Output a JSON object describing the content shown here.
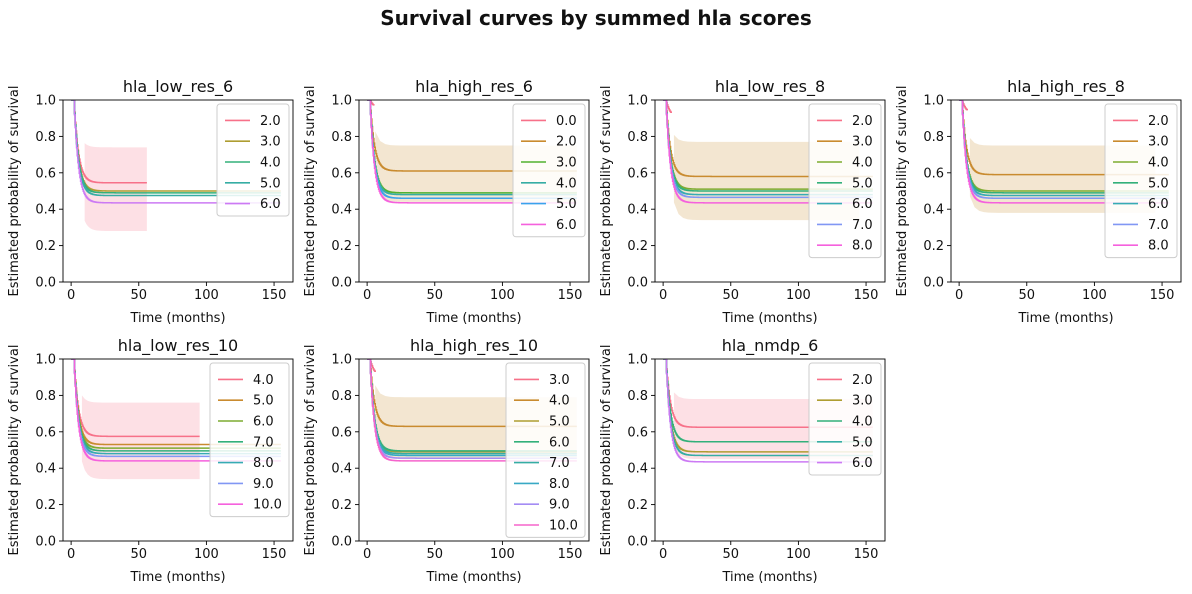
{
  "title": "Survival curves by summed hla scores",
  "chart_data": [
    {
      "type": "line",
      "title": "hla_low_res_6",
      "xlabel": "Time (months)",
      "ylabel": "Estimated probability of survival",
      "xlim": [
        -6,
        164
      ],
      "ylim": [
        0,
        1.0
      ],
      "xticks": [
        0,
        50,
        100,
        150
      ],
      "yticks": [
        0.0,
        0.2,
        0.4,
        0.6,
        0.8,
        1.0
      ],
      "legend": "top-right",
      "series": [
        {
          "name": "2.0",
          "color": "#f77189",
          "x_end": 56,
          "final": 0.545,
          "ci": [
            0.31,
            0.72
          ],
          "ci_x": [
            10,
            56
          ]
        },
        {
          "name": "3.0",
          "color": "#ae9d31",
          "x_end": 155,
          "final": 0.5
        },
        {
          "name": "4.0",
          "color": "#33b07a",
          "x_end": 155,
          "final": 0.49
        },
        {
          "name": "5.0",
          "color": "#36ada4",
          "x_end": 155,
          "final": 0.475
        },
        {
          "name": "6.0",
          "color": "#cc7af4",
          "x_end": 155,
          "final": 0.435
        }
      ]
    },
    {
      "type": "line",
      "title": "hla_high_res_6",
      "xlabel": "Time (months)",
      "ylabel": "Estimated probability of survival",
      "xlim": [
        -6,
        164
      ],
      "ylim": [
        0,
        1.0
      ],
      "xticks": [
        0,
        50,
        100,
        150
      ],
      "yticks": [
        0.0,
        0.2,
        0.4,
        0.6,
        0.8,
        1.0
      ],
      "legend": "top-right",
      "series": [
        {
          "name": "0.0",
          "color": "#f77189",
          "x_end": 5,
          "final": 0.95
        },
        {
          "name": "2.0",
          "color": "#c98b2f",
          "x_end": 155,
          "final": 0.61,
          "ci": [
            0.47,
            0.73
          ],
          "ci_x": [
            6,
            155
          ]
        },
        {
          "name": "3.0",
          "color": "#50b131",
          "x_end": 155,
          "final": 0.49
        },
        {
          "name": "4.0",
          "color": "#36ada4",
          "x_end": 155,
          "final": 0.48
        },
        {
          "name": "5.0",
          "color": "#3ba3ec",
          "x_end": 155,
          "final": 0.46
        },
        {
          "name": "6.0",
          "color": "#f561dd",
          "x_end": 155,
          "final": 0.435
        }
      ]
    },
    {
      "type": "line",
      "title": "hla_low_res_8",
      "xlabel": "Time (months)",
      "ylabel": "Estimated probability of survival",
      "xlim": [
        -6,
        164
      ],
      "ylim": [
        0,
        1.0
      ],
      "xticks": [
        0,
        50,
        100,
        150
      ],
      "yticks": [
        0.0,
        0.2,
        0.4,
        0.6,
        0.8,
        1.0
      ],
      "legend": "top-right",
      "series": [
        {
          "name": "2.0",
          "color": "#f77189",
          "x_end": 6,
          "final": 0.9
        },
        {
          "name": "3.0",
          "color": "#c98b2f",
          "x_end": 155,
          "final": 0.58,
          "ci": [
            0.37,
            0.75
          ],
          "ci_x": [
            8,
            145
          ]
        },
        {
          "name": "4.0",
          "color": "#7dab31",
          "x_end": 155,
          "final": 0.51
        },
        {
          "name": "5.0",
          "color": "#33b07a",
          "x_end": 155,
          "final": 0.5
        },
        {
          "name": "6.0",
          "color": "#37abb4",
          "x_end": 155,
          "final": 0.48
        },
        {
          "name": "7.0",
          "color": "#8197f4",
          "x_end": 155,
          "final": 0.465
        },
        {
          "name": "8.0",
          "color": "#f561dd",
          "x_end": 155,
          "final": 0.435
        }
      ]
    },
    {
      "type": "line",
      "title": "hla_high_res_8",
      "xlabel": "Time (months)",
      "ylabel": "Estimated probability of survival",
      "xlim": [
        -6,
        164
      ],
      "ylim": [
        0,
        1.0
      ],
      "xticks": [
        0,
        50,
        100,
        150
      ],
      "yticks": [
        0.0,
        0.2,
        0.4,
        0.6,
        0.8,
        1.0
      ],
      "legend": "top-right",
      "series": [
        {
          "name": "2.0",
          "color": "#f77189",
          "x_end": 6,
          "final": 0.92
        },
        {
          "name": "3.0",
          "color": "#c98b2f",
          "x_end": 155,
          "final": 0.59,
          "ci": [
            0.41,
            0.73
          ],
          "ci_x": [
            8,
            145
          ]
        },
        {
          "name": "4.0",
          "color": "#7dab31",
          "x_end": 155,
          "final": 0.5
        },
        {
          "name": "5.0",
          "color": "#33b07a",
          "x_end": 155,
          "final": 0.49
        },
        {
          "name": "6.0",
          "color": "#37abb4",
          "x_end": 155,
          "final": 0.475
        },
        {
          "name": "7.0",
          "color": "#8197f4",
          "x_end": 155,
          "final": 0.46
        },
        {
          "name": "8.0",
          "color": "#f561dd",
          "x_end": 155,
          "final": 0.435
        }
      ]
    },
    {
      "type": "line",
      "title": "hla_low_res_10",
      "xlabel": "Time (months)",
      "ylabel": "Estimated probability of survival",
      "xlim": [
        -6,
        164
      ],
      "ylim": [
        0,
        1.0
      ],
      "xticks": [
        0,
        50,
        100,
        150
      ],
      "yticks": [
        0.0,
        0.2,
        0.4,
        0.6,
        0.8,
        1.0
      ],
      "legend": "top-right",
      "series": [
        {
          "name": "4.0",
          "color": "#f77189",
          "x_end": 95,
          "final": 0.575,
          "ci": [
            0.37,
            0.74
          ],
          "ci_x": [
            8,
            95
          ]
        },
        {
          "name": "5.0",
          "color": "#c98b2f",
          "x_end": 155,
          "final": 0.53
        },
        {
          "name": "6.0",
          "color": "#7dab31",
          "x_end": 155,
          "final": 0.51
        },
        {
          "name": "7.0",
          "color": "#33b07a",
          "x_end": 155,
          "final": 0.495
        },
        {
          "name": "8.0",
          "color": "#37abb4",
          "x_end": 155,
          "final": 0.48
        },
        {
          "name": "9.0",
          "color": "#8197f4",
          "x_end": 155,
          "final": 0.465
        },
        {
          "name": "10.0",
          "color": "#f561dd",
          "x_end": 155,
          "final": 0.44
        }
      ]
    },
    {
      "type": "line",
      "title": "hla_high_res_10",
      "xlabel": "Time (months)",
      "ylabel": "Estimated probability of survival",
      "xlim": [
        -6,
        164
      ],
      "ylim": [
        0,
        1.0
      ],
      "xticks": [
        0,
        50,
        100,
        150
      ],
      "yticks": [
        0.0,
        0.2,
        0.4,
        0.6,
        0.8,
        1.0
      ],
      "legend": "top-right",
      "series": [
        {
          "name": "3.0",
          "color": "#f77189",
          "x_end": 6,
          "final": 0.9
        },
        {
          "name": "4.0",
          "color": "#c98b2f",
          "x_end": 155,
          "final": 0.63,
          "ci": [
            0.48,
            0.77
          ],
          "ci_x": [
            6,
            155
          ]
        },
        {
          "name": "5.0",
          "color": "#ae9d31",
          "x_end": 155,
          "final": 0.49
        },
        {
          "name": "6.0",
          "color": "#33b07a",
          "x_end": 155,
          "final": 0.495
        },
        {
          "name": "7.0",
          "color": "#36ada4",
          "x_end": 155,
          "final": 0.48
        },
        {
          "name": "8.0",
          "color": "#38a9c5",
          "x_end": 155,
          "final": 0.47
        },
        {
          "name": "9.0",
          "color": "#a48cf4",
          "x_end": 155,
          "final": 0.455
        },
        {
          "name": "10.0",
          "color": "#f565cc",
          "x_end": 155,
          "final": 0.44
        }
      ]
    },
    {
      "type": "line",
      "title": "hla_nmdp_6",
      "xlabel": "Time (months)",
      "ylabel": "Estimated probability of survival",
      "xlim": [
        -6,
        164
      ],
      "ylim": [
        0,
        1.0
      ],
      "xticks": [
        0,
        50,
        100,
        150
      ],
      "yticks": [
        0.0,
        0.2,
        0.4,
        0.6,
        0.8,
        1.0
      ],
      "legend": "top-right",
      "series": [
        {
          "name": "2.0",
          "color": "#f77189",
          "x_end": 155,
          "final": 0.625,
          "ci": [
            0.48,
            0.76
          ],
          "ci_x": [
            8,
            155
          ]
        },
        {
          "name": "3.0",
          "color": "#ae9d31",
          "x_end": 155,
          "final": 0.49
        },
        {
          "name": "4.0",
          "color": "#33b07a",
          "x_end": 155,
          "final": 0.545
        },
        {
          "name": "5.0",
          "color": "#36ada4",
          "x_end": 155,
          "final": 0.47
        },
        {
          "name": "6.0",
          "color": "#cc7af4",
          "x_end": 155,
          "final": 0.435
        }
      ]
    }
  ]
}
